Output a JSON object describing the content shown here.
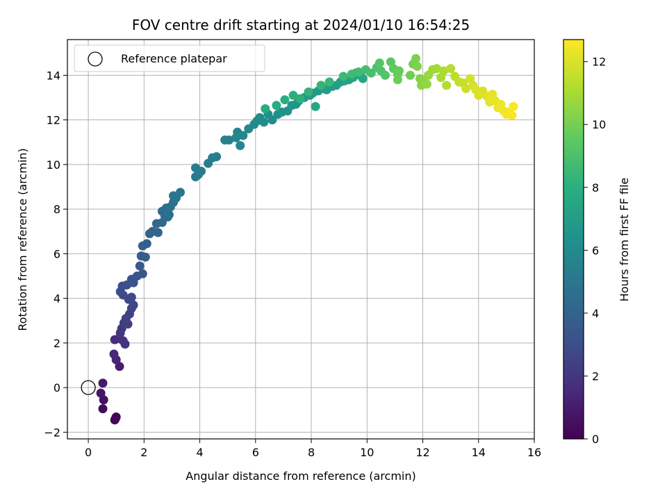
{
  "chart_data": {
    "type": "scatter",
    "title": "FOV centre drift starting at 2024/01/10 16:54:25",
    "xlabel": "Angular distance from reference (arcmin)",
    "ylabel": "Rotation from reference (arcmin)",
    "xlim": [
      -0.75,
      16.0
    ],
    "ylim": [
      -2.3,
      15.6
    ],
    "xticks": [
      0,
      2,
      4,
      6,
      8,
      10,
      12,
      14,
      16
    ],
    "yticks": [
      -2,
      0,
      2,
      4,
      6,
      8,
      10,
      12,
      14
    ],
    "grid": true,
    "legend": {
      "position": "top-left",
      "entries": [
        "Reference platepar"
      ]
    },
    "reference_point": {
      "x": 0,
      "y": 0
    },
    "colorbar": {
      "label": "Hours from first FF file",
      "range": [
        0,
        12.7
      ],
      "ticks": [
        0,
        2,
        4,
        6,
        8,
        10,
        12
      ],
      "colormap": "viridis"
    },
    "series": [
      {
        "color_key": "hours",
        "points": [
          [
            0.95,
            -1.45,
            0.05
          ],
          [
            1.0,
            -1.32,
            0.15
          ],
          [
            0.98,
            -1.38,
            0.2
          ],
          [
            0.52,
            -0.95,
            0.4
          ],
          [
            0.55,
            -0.55,
            0.6
          ],
          [
            0.45,
            -0.25,
            0.75
          ],
          [
            0.52,
            0.2,
            0.9
          ],
          [
            1.12,
            0.95,
            1.1
          ],
          [
            1.0,
            1.25,
            1.25
          ],
          [
            0.92,
            1.5,
            1.4
          ],
          [
            0.95,
            2.15,
            1.6
          ],
          [
            1.1,
            2.2,
            1.7
          ],
          [
            1.25,
            2.1,
            1.8
          ],
          [
            1.32,
            1.95,
            1.9
          ],
          [
            1.15,
            2.45,
            2.0
          ],
          [
            1.2,
            2.65,
            2.1
          ],
          [
            1.28,
            2.9,
            2.2
          ],
          [
            1.42,
            2.85,
            2.3
          ],
          [
            1.35,
            3.1,
            2.4
          ],
          [
            1.48,
            3.3,
            2.5
          ],
          [
            1.55,
            3.55,
            2.6
          ],
          [
            1.62,
            3.7,
            2.7
          ],
          [
            1.45,
            3.95,
            2.8
          ],
          [
            1.55,
            4.05,
            2.85
          ],
          [
            1.25,
            4.15,
            2.9
          ],
          [
            1.15,
            4.3,
            2.95
          ],
          [
            1.22,
            4.55,
            3.0
          ],
          [
            1.38,
            4.6,
            3.05
          ],
          [
            1.55,
            4.85,
            3.15
          ],
          [
            1.62,
            4.7,
            3.2
          ],
          [
            1.75,
            5.0,
            3.3
          ],
          [
            1.95,
            5.1,
            3.4
          ],
          [
            1.85,
            5.45,
            3.5
          ],
          [
            1.9,
            5.9,
            3.6
          ],
          [
            2.05,
            5.85,
            3.7
          ],
          [
            1.95,
            6.35,
            3.8
          ],
          [
            2.1,
            6.45,
            3.9
          ],
          [
            2.2,
            6.9,
            4.0
          ],
          [
            2.3,
            7.0,
            4.05
          ],
          [
            2.5,
            6.95,
            4.1
          ],
          [
            2.45,
            7.35,
            4.2
          ],
          [
            2.65,
            7.4,
            4.3
          ],
          [
            2.75,
            7.7,
            4.4
          ],
          [
            2.85,
            7.65,
            4.45
          ],
          [
            2.65,
            7.9,
            4.5
          ],
          [
            2.8,
            8.05,
            4.55
          ],
          [
            2.95,
            8.1,
            4.6
          ],
          [
            2.9,
            7.75,
            4.65
          ],
          [
            3.05,
            8.3,
            4.7
          ],
          [
            3.15,
            8.5,
            4.8
          ],
          [
            3.3,
            8.75,
            4.9
          ],
          [
            3.05,
            8.6,
            4.95
          ],
          [
            3.85,
            9.45,
            5.1
          ],
          [
            3.95,
            9.55,
            5.15
          ],
          [
            3.85,
            9.85,
            5.2
          ],
          [
            4.05,
            9.7,
            5.25
          ],
          [
            4.3,
            10.05,
            5.35
          ],
          [
            4.45,
            10.3,
            5.4
          ],
          [
            4.6,
            10.35,
            5.45
          ],
          [
            4.9,
            11.1,
            5.6
          ],
          [
            5.05,
            11.1,
            5.65
          ],
          [
            5.3,
            11.2,
            5.7
          ],
          [
            5.35,
            11.45,
            5.75
          ],
          [
            5.45,
            10.85,
            5.8
          ],
          [
            5.55,
            11.3,
            5.85
          ],
          [
            5.75,
            11.6,
            5.9
          ],
          [
            5.95,
            11.8,
            5.95
          ],
          [
            6.05,
            11.95,
            6.0
          ],
          [
            6.15,
            12.1,
            6.05
          ],
          [
            6.3,
            11.9,
            6.1
          ],
          [
            6.45,
            12.25,
            6.15
          ],
          [
            6.6,
            12.0,
            6.2
          ],
          [
            6.8,
            12.25,
            6.3
          ],
          [
            6.95,
            12.35,
            6.35
          ],
          [
            7.15,
            12.4,
            6.45
          ],
          [
            7.3,
            12.65,
            6.5
          ],
          [
            7.45,
            12.7,
            6.55
          ],
          [
            7.55,
            12.85,
            6.6
          ],
          [
            7.75,
            13.0,
            6.7
          ],
          [
            7.95,
            13.1,
            6.75
          ],
          [
            8.05,
            13.2,
            6.8
          ],
          [
            8.25,
            13.3,
            6.85
          ],
          [
            8.45,
            13.4,
            6.9
          ],
          [
            8.55,
            13.35,
            6.95
          ],
          [
            8.75,
            13.5,
            7.0
          ],
          [
            8.9,
            13.55,
            7.05
          ],
          [
            9.05,
            13.7,
            7.1
          ],
          [
            9.2,
            13.75,
            7.2
          ],
          [
            9.35,
            13.8,
            7.25
          ],
          [
            9.5,
            13.9,
            7.3
          ],
          [
            9.6,
            14.1,
            7.4
          ],
          [
            9.75,
            14.0,
            7.45
          ],
          [
            9.85,
            13.85,
            7.5
          ],
          [
            8.15,
            12.6,
            7.6
          ],
          [
            6.35,
            12.5,
            7.7
          ],
          [
            6.75,
            12.65,
            7.8
          ],
          [
            7.05,
            12.9,
            7.9
          ],
          [
            7.35,
            13.1,
            8.0
          ],
          [
            7.6,
            12.95,
            8.1
          ],
          [
            7.9,
            13.25,
            8.2
          ],
          [
            8.35,
            13.55,
            8.3
          ],
          [
            8.65,
            13.7,
            8.4
          ],
          [
            9.15,
            13.95,
            8.5
          ],
          [
            9.45,
            14.05,
            8.6
          ],
          [
            9.7,
            14.15,
            8.7
          ],
          [
            9.95,
            14.25,
            8.8
          ],
          [
            10.15,
            14.1,
            8.9
          ],
          [
            10.35,
            14.35,
            9.0
          ],
          [
            10.5,
            14.2,
            9.1
          ],
          [
            10.65,
            14.0,
            9.2
          ],
          [
            10.45,
            14.55,
            9.3
          ],
          [
            10.85,
            14.6,
            9.4
          ],
          [
            10.95,
            14.3,
            9.5
          ],
          [
            11.1,
            14.05,
            9.6
          ],
          [
            11.15,
            14.2,
            9.7
          ],
          [
            11.1,
            13.8,
            9.8
          ],
          [
            11.55,
            14.0,
            9.9
          ],
          [
            11.65,
            14.5,
            10.0
          ],
          [
            11.75,
            14.75,
            10.1
          ],
          [
            11.8,
            14.4,
            10.2
          ],
          [
            11.9,
            13.85,
            10.3
          ],
          [
            11.95,
            13.55,
            10.4
          ],
          [
            12.05,
            13.75,
            10.5
          ],
          [
            12.15,
            13.6,
            10.6
          ],
          [
            12.2,
            14.0,
            10.7
          ],
          [
            12.35,
            14.25,
            10.8
          ],
          [
            12.5,
            14.3,
            10.9
          ],
          [
            12.65,
            13.9,
            11.0
          ],
          [
            12.75,
            14.2,
            11.1
          ],
          [
            12.85,
            13.55,
            11.2
          ],
          [
            13.0,
            14.3,
            11.3
          ],
          [
            13.15,
            13.95,
            11.4
          ],
          [
            13.3,
            13.7,
            11.5
          ],
          [
            13.45,
            13.65,
            11.6
          ],
          [
            13.55,
            13.4,
            11.7
          ],
          [
            13.7,
            13.85,
            11.8
          ],
          [
            13.8,
            13.55,
            11.9
          ],
          [
            13.9,
            13.35,
            11.95
          ],
          [
            14.0,
            13.1,
            12.0
          ],
          [
            14.15,
            13.3,
            12.05
          ],
          [
            14.3,
            13.05,
            12.1
          ],
          [
            14.4,
            12.8,
            12.2
          ],
          [
            14.5,
            13.15,
            12.25
          ],
          [
            14.6,
            12.85,
            12.3
          ],
          [
            14.7,
            12.55,
            12.35
          ],
          [
            14.8,
            12.7,
            12.4
          ],
          [
            14.9,
            12.4,
            12.45
          ],
          [
            15.0,
            12.25,
            12.5
          ],
          [
            15.1,
            12.35,
            12.55
          ],
          [
            15.2,
            12.2,
            12.6
          ],
          [
            15.25,
            12.6,
            12.65
          ]
        ]
      }
    ]
  }
}
